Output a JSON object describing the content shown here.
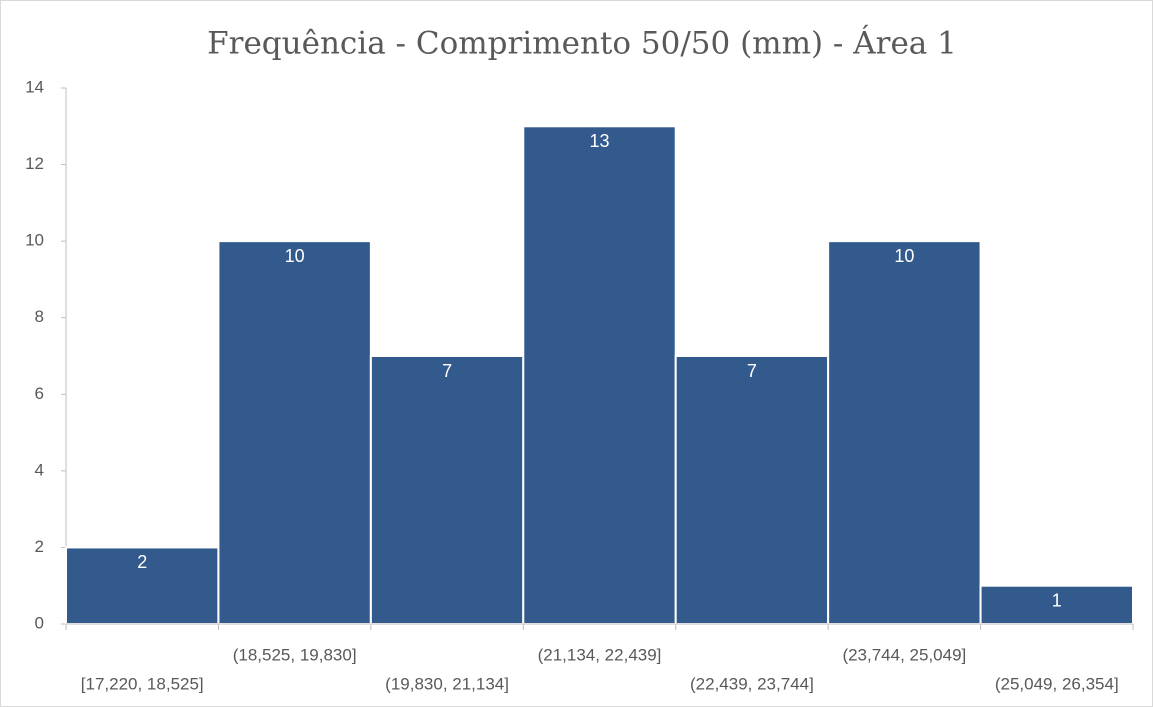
{
  "chart_data": {
    "type": "bar",
    "title": "Frequência - Comprimento 50/50 (mm) - Área 1",
    "categories": [
      "[17,220, 18,525]",
      "(18,525, 19,830]",
      "(19,830, 21,134]",
      "(21,134, 22,439]",
      "(22,439, 23,744]",
      "(23,744, 25,049]",
      "(25,049, 26,354]"
    ],
    "values": [
      2,
      10,
      7,
      13,
      7,
      10,
      1
    ],
    "color": "#325a8c",
    "ylim": [
      0,
      14
    ],
    "yticks": [
      0,
      2,
      4,
      6,
      8,
      10,
      12,
      14
    ],
    "grid": false
  }
}
